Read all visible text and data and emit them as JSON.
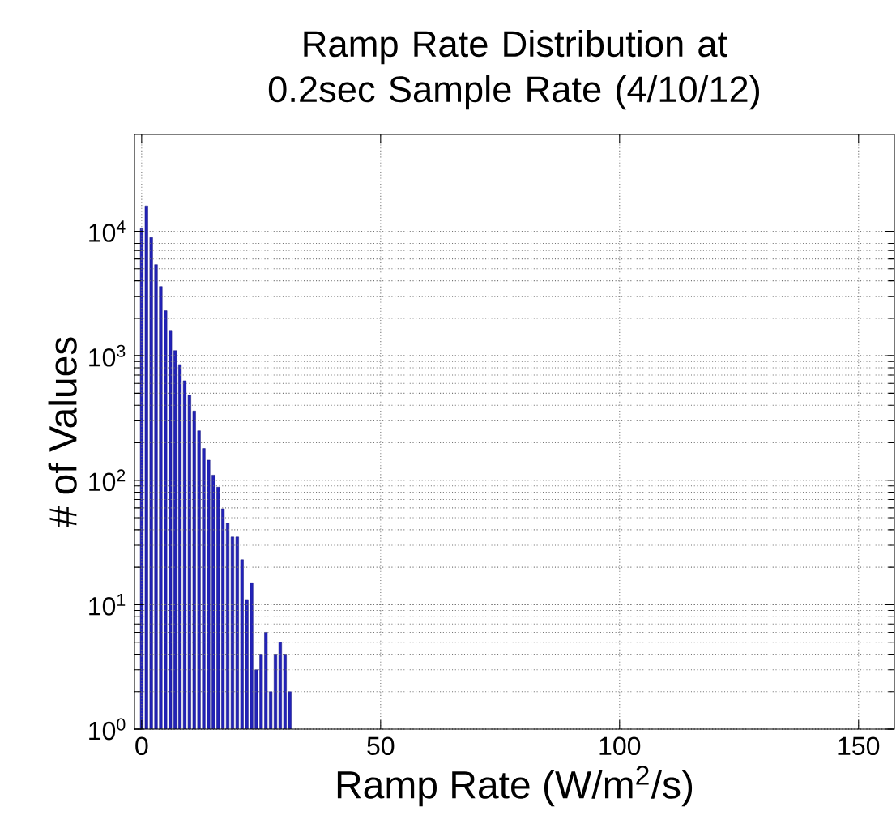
{
  "chart_data": {
    "type": "histogram",
    "title": "Ramp Rate Distribution at 0.2sec Sample Rate (4/10/12)",
    "xlabel": "Ramp Rate (W/m$^{2}$/s)",
    "ylabel": "# of Values",
    "bins": [
      -0.5,
      0.5,
      1.5,
      2.5,
      3.5,
      4.5,
      5.5,
      6.5,
      7.5,
      8.5,
      9.5,
      10.5,
      11.5,
      12.5,
      13.5,
      14.5,
      15.5,
      16.5,
      17.5,
      18.5,
      19.5,
      20.5,
      21.5,
      22.5,
      23.5,
      24.5,
      25.5,
      26.5,
      27.5,
      28.5,
      29.5,
      30.5,
      31.5
    ],
    "values": [
      10500,
      16000,
      8900,
      5400,
      3600,
      2300,
      1600,
      1100,
      850,
      630,
      480,
      360,
      250,
      180,
      145,
      110,
      88,
      59,
      45,
      35,
      35,
      23,
      11,
      15,
      3,
      4,
      6,
      2,
      4,
      5,
      4,
      2
    ],
    "color": "#2222b8",
    "log": "y",
    "grid": true,
    "xlim": [
      -1.5,
      157.5
    ],
    "xticks": [
      0,
      50,
      100,
      150
    ],
    "ylim": [
      1,
      60000
    ],
    "yticks": [
      {
        "value": 1,
        "label": "10$^{0}$"
      },
      {
        "value": 10,
        "label": "10$^{1}$"
      },
      {
        "value": 100,
        "label": "10$^{2}$"
      },
      {
        "value": 1000,
        "label": "10$^{3}$"
      },
      {
        "value": 10000,
        "label": "10$^{4}$"
      }
    ]
  }
}
